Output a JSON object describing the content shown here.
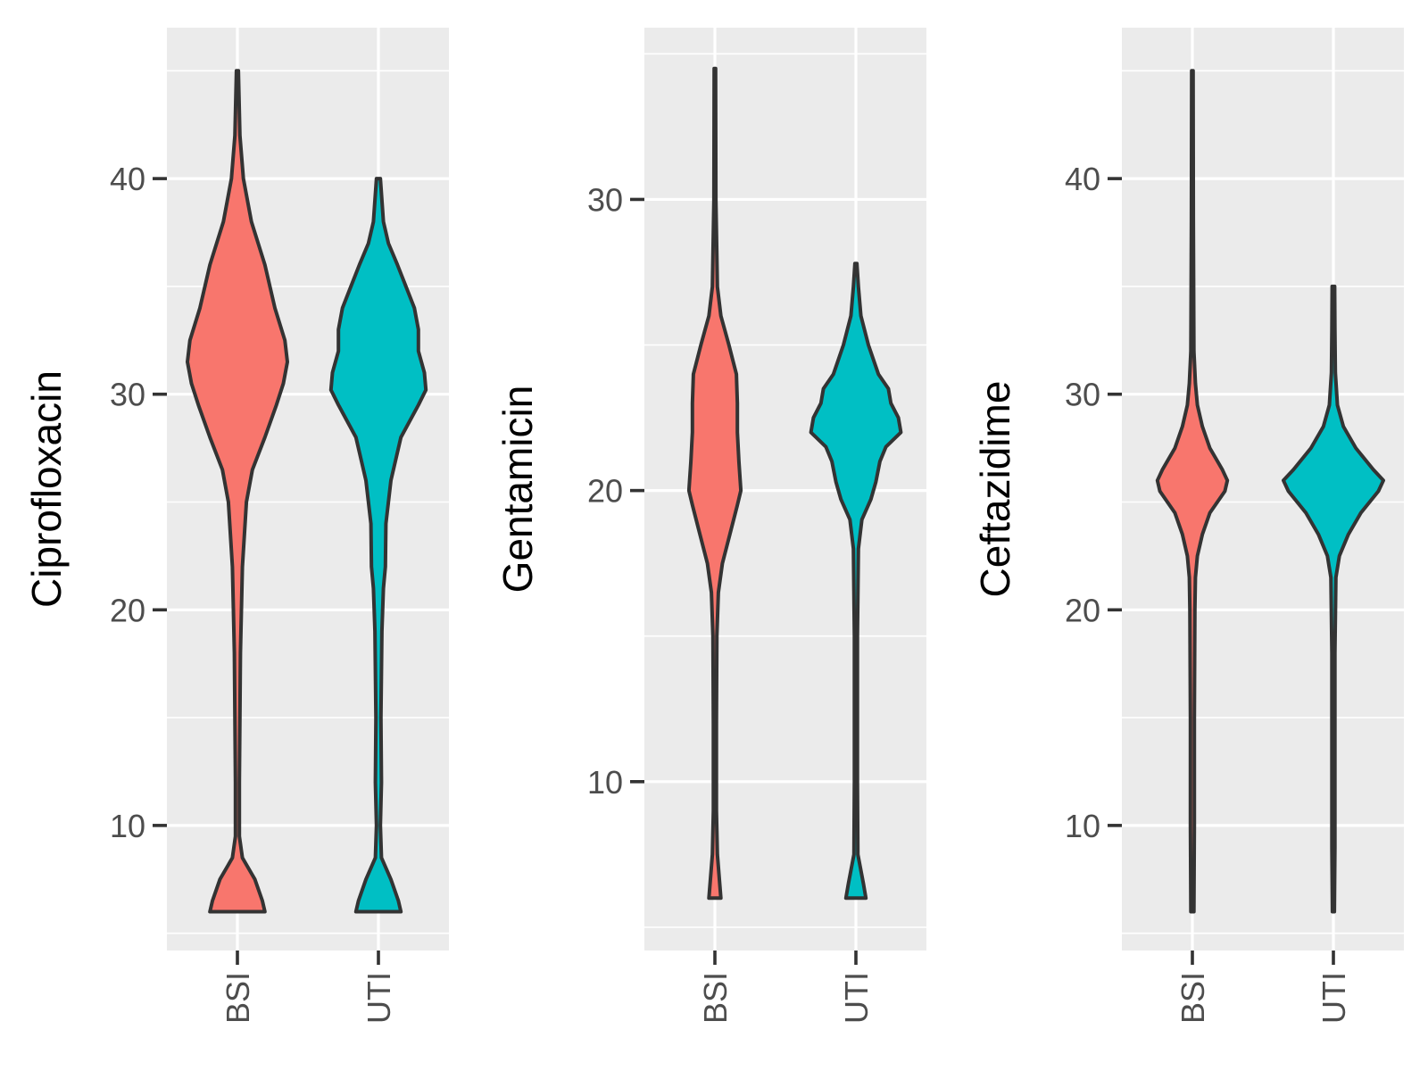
{
  "chart_data": [
    {
      "type": "violin",
      "ylabel": "Ciprofloxacin",
      "categories": [
        "BSI",
        "UTI"
      ],
      "colors": {
        "BSI": "#F8766D",
        "UTI": "#00BFC4"
      },
      "ylim": [
        4.2,
        47.0
      ],
      "yticks": [
        10,
        20,
        30,
        40
      ],
      "yticks_minor": [
        5,
        15,
        25,
        35,
        45
      ],
      "series": [
        {
          "category": "BSI",
          "density": [
            [
              6,
              0.55
            ],
            [
              6.5,
              0.5
            ],
            [
              7.5,
              0.35
            ],
            [
              8.5,
              0.1
            ],
            [
              9.5,
              0.04
            ],
            [
              12,
              0.04
            ],
            [
              18,
              0.06
            ],
            [
              22,
              0.1
            ],
            [
              25,
              0.18
            ],
            [
              26.5,
              0.3
            ],
            [
              28,
              0.55
            ],
            [
              29.5,
              0.78
            ],
            [
              30.5,
              0.92
            ],
            [
              31.5,
              1.0
            ],
            [
              32.5,
              0.95
            ],
            [
              34,
              0.75
            ],
            [
              36,
              0.55
            ],
            [
              38,
              0.28
            ],
            [
              40,
              0.12
            ],
            [
              42,
              0.05
            ],
            [
              45,
              0.02
            ]
          ]
        },
        {
          "category": "UTI",
          "density": [
            [
              6,
              0.45
            ],
            [
              6.5,
              0.4
            ],
            [
              7.5,
              0.25
            ],
            [
              8.5,
              0.06
            ],
            [
              10,
              0.04
            ],
            [
              12,
              0.06
            ],
            [
              15,
              0.05
            ],
            [
              19,
              0.07
            ],
            [
              21,
              0.1
            ],
            [
              22,
              0.14
            ],
            [
              24,
              0.15
            ],
            [
              26,
              0.25
            ],
            [
              28,
              0.45
            ],
            [
              29.5,
              0.8
            ],
            [
              30.2,
              0.95
            ],
            [
              31,
              0.92
            ],
            [
              32,
              0.8
            ],
            [
              33,
              0.8
            ],
            [
              34,
              0.72
            ],
            [
              35,
              0.55
            ],
            [
              36,
              0.38
            ],
            [
              37,
              0.2
            ],
            [
              38,
              0.1
            ],
            [
              40,
              0.04
            ]
          ]
        }
      ]
    },
    {
      "type": "violin",
      "ylabel": "Gentamicin",
      "categories": [
        "BSI",
        "UTI"
      ],
      "colors": {
        "BSI": "#F8766D",
        "UTI": "#00BFC4"
      },
      "ylim": [
        4.2,
        35.9
      ],
      "yticks": [
        10,
        20,
        30
      ],
      "yticks_minor": [
        5,
        15,
        25,
        35
      ],
      "series": [
        {
          "category": "BSI",
          "density": [
            [
              6,
              0.12
            ],
            [
              7.5,
              0.05
            ],
            [
              9,
              0.03
            ],
            [
              12,
              0.03
            ],
            [
              15,
              0.04
            ],
            [
              16.5,
              0.07
            ],
            [
              17.5,
              0.15
            ],
            [
              18.5,
              0.3
            ],
            [
              19.5,
              0.45
            ],
            [
              20,
              0.52
            ],
            [
              21,
              0.48
            ],
            [
              22,
              0.45
            ],
            [
              23,
              0.45
            ],
            [
              24,
              0.43
            ],
            [
              25,
              0.28
            ],
            [
              26,
              0.12
            ],
            [
              27,
              0.05
            ],
            [
              30,
              0.02
            ],
            [
              34.5,
              0.015
            ]
          ]
        },
        {
          "category": "UTI",
          "density": [
            [
              6,
              0.2
            ],
            [
              6.5,
              0.15
            ],
            [
              7.5,
              0.04
            ],
            [
              10,
              0.03
            ],
            [
              15,
              0.03
            ],
            [
              18,
              0.05
            ],
            [
              19,
              0.12
            ],
            [
              19.7,
              0.3
            ],
            [
              20.3,
              0.4
            ],
            [
              21,
              0.48
            ],
            [
              21.5,
              0.6
            ],
            [
              22,
              0.9
            ],
            [
              22.5,
              0.85
            ],
            [
              23,
              0.7
            ],
            [
              23.5,
              0.65
            ],
            [
              24,
              0.45
            ],
            [
              25,
              0.25
            ],
            [
              26,
              0.1
            ],
            [
              27,
              0.05
            ],
            [
              27.8,
              0.02
            ]
          ]
        }
      ]
    },
    {
      "type": "violin",
      "ylabel": "Ceftazidime",
      "categories": [
        "BSI",
        "UTI"
      ],
      "colors": {
        "BSI": "#F8766D",
        "UTI": "#00BFC4"
      },
      "ylim": [
        4.2,
        47.0
      ],
      "yticks": [
        10,
        20,
        30,
        40
      ],
      "yticks_minor": [
        5,
        15,
        25,
        35,
        45
      ],
      "series": [
        {
          "category": "BSI",
          "density": [
            [
              6,
              0.03
            ],
            [
              10,
              0.04
            ],
            [
              15,
              0.04
            ],
            [
              20,
              0.05
            ],
            [
              21.5,
              0.06
            ],
            [
              22.5,
              0.1
            ],
            [
              23.5,
              0.2
            ],
            [
              24.5,
              0.35
            ],
            [
              25.5,
              0.65
            ],
            [
              26,
              0.7
            ],
            [
              26.5,
              0.6
            ],
            [
              27.5,
              0.35
            ],
            [
              28.5,
              0.2
            ],
            [
              29.5,
              0.1
            ],
            [
              30.5,
              0.06
            ],
            [
              32,
              0.03
            ],
            [
              38,
              0.02
            ],
            [
              45,
              0.015
            ]
          ]
        },
        {
          "category": "UTI",
          "density": [
            [
              6,
              0.02
            ],
            [
              9,
              0.03
            ],
            [
              13,
              0.03
            ],
            [
              18,
              0.03
            ],
            [
              21.5,
              0.05
            ],
            [
              22.5,
              0.12
            ],
            [
              23.5,
              0.3
            ],
            [
              24.5,
              0.55
            ],
            [
              25.5,
              0.9
            ],
            [
              26,
              1.0
            ],
            [
              26.5,
              0.8
            ],
            [
              27.5,
              0.45
            ],
            [
              28.5,
              0.2
            ],
            [
              29.5,
              0.08
            ],
            [
              31,
              0.04
            ],
            [
              33,
              0.03
            ],
            [
              35,
              0.025
            ]
          ]
        }
      ]
    }
  ]
}
